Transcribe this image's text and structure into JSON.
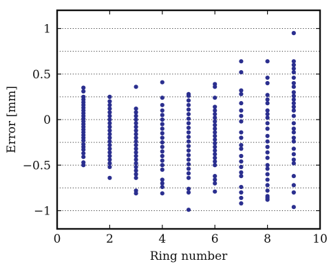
{
  "chart_data": {
    "type": "scatter",
    "xlabel": "Ring number",
    "ylabel": "Error [mm]",
    "xlim": [
      0,
      10
    ],
    "ylim": [
      -1.2,
      1.2
    ],
    "x_ticks": [
      0,
      2,
      4,
      6,
      8,
      10
    ],
    "x_tick_labels": [
      "0",
      "2",
      "4",
      "6",
      "8",
      "10"
    ],
    "y_ticks": [
      1,
      0.5,
      0,
      -0.5,
      -1
    ],
    "y_tick_labels": [
      "1",
      "0.5",
      "0",
      "−0.5",
      "−1"
    ],
    "grid": "horizontal dotted lines every 0.25",
    "grid_values": [
      1,
      0.75,
      0.5,
      0.25,
      0,
      -0.25,
      -0.5,
      -0.75,
      -1
    ],
    "legend": "none",
    "marker_color": "#2b2f8f",
    "series": [
      {
        "points": [
          {
            "x": 1,
            "y": 0.35
          },
          {
            "x": 1,
            "y": 0.31
          },
          {
            "x": 1,
            "y": 0.25
          },
          {
            "x": 1,
            "y": 0.22
          },
          {
            "x": 1,
            "y": 0.19
          },
          {
            "x": 1,
            "y": 0.16
          },
          {
            "x": 1,
            "y": 0.13
          },
          {
            "x": 1,
            "y": 0.1
          },
          {
            "x": 1,
            "y": 0.07
          },
          {
            "x": 1,
            "y": 0.04
          },
          {
            "x": 1,
            "y": 0.01
          },
          {
            "x": 1,
            "y": -0.02
          },
          {
            "x": 1,
            "y": -0.05
          },
          {
            "x": 1,
            "y": -0.08
          },
          {
            "x": 1,
            "y": -0.11
          },
          {
            "x": 1,
            "y": -0.14
          },
          {
            "x": 1,
            "y": -0.17
          },
          {
            "x": 1,
            "y": -0.2
          },
          {
            "x": 1,
            "y": -0.23
          },
          {
            "x": 1,
            "y": -0.27
          },
          {
            "x": 1,
            "y": -0.3
          },
          {
            "x": 1,
            "y": -0.33
          },
          {
            "x": 1,
            "y": -0.37
          },
          {
            "x": 1,
            "y": -0.41
          },
          {
            "x": 1,
            "y": -0.47
          },
          {
            "x": 1,
            "y": -0.5
          },
          {
            "x": 2,
            "y": 0.25
          },
          {
            "x": 2,
            "y": 0.2
          },
          {
            "x": 2,
            "y": 0.16
          },
          {
            "x": 2,
            "y": 0.12
          },
          {
            "x": 2,
            "y": 0.08
          },
          {
            "x": 2,
            "y": 0.04
          },
          {
            "x": 2,
            "y": 0.0
          },
          {
            "x": 2,
            "y": -0.04
          },
          {
            "x": 2,
            "y": -0.08
          },
          {
            "x": 2,
            "y": -0.12
          },
          {
            "x": 2,
            "y": -0.16
          },
          {
            "x": 2,
            "y": -0.2
          },
          {
            "x": 2,
            "y": -0.24
          },
          {
            "x": 2,
            "y": -0.28
          },
          {
            "x": 2,
            "y": -0.32
          },
          {
            "x": 2,
            "y": -0.36
          },
          {
            "x": 2,
            "y": -0.4
          },
          {
            "x": 2,
            "y": -0.44
          },
          {
            "x": 2,
            "y": -0.48
          },
          {
            "x": 2,
            "y": -0.52
          },
          {
            "x": 2,
            "y": -0.64
          },
          {
            "x": 3,
            "y": 0.36
          },
          {
            "x": 3,
            "y": 0.12
          },
          {
            "x": 3,
            "y": 0.08
          },
          {
            "x": 3,
            "y": 0.04
          },
          {
            "x": 3,
            "y": 0.0
          },
          {
            "x": 3,
            "y": -0.04
          },
          {
            "x": 3,
            "y": -0.08
          },
          {
            "x": 3,
            "y": -0.12
          },
          {
            "x": 3,
            "y": -0.16
          },
          {
            "x": 3,
            "y": -0.2
          },
          {
            "x": 3,
            "y": -0.24
          },
          {
            "x": 3,
            "y": -0.28
          },
          {
            "x": 3,
            "y": -0.32
          },
          {
            "x": 3,
            "y": -0.36
          },
          {
            "x": 3,
            "y": -0.4
          },
          {
            "x": 3,
            "y": -0.44
          },
          {
            "x": 3,
            "y": -0.48
          },
          {
            "x": 3,
            "y": -0.52
          },
          {
            "x": 3,
            "y": -0.56
          },
          {
            "x": 3,
            "y": -0.6
          },
          {
            "x": 3,
            "y": -0.64
          },
          {
            "x": 3,
            "y": -0.78
          },
          {
            "x": 3,
            "y": -0.81
          },
          {
            "x": 4,
            "y": 0.41
          },
          {
            "x": 4,
            "y": 0.24
          },
          {
            "x": 4,
            "y": 0.16
          },
          {
            "x": 4,
            "y": 0.1
          },
          {
            "x": 4,
            "y": 0.05
          },
          {
            "x": 4,
            "y": 0.0
          },
          {
            "x": 4,
            "y": -0.05
          },
          {
            "x": 4,
            "y": -0.1
          },
          {
            "x": 4,
            "y": -0.15
          },
          {
            "x": 4,
            "y": -0.2
          },
          {
            "x": 4,
            "y": -0.25
          },
          {
            "x": 4,
            "y": -0.3
          },
          {
            "x": 4,
            "y": -0.35
          },
          {
            "x": 4,
            "y": -0.4
          },
          {
            "x": 4,
            "y": -0.45
          },
          {
            "x": 4,
            "y": -0.5
          },
          {
            "x": 4,
            "y": -0.55
          },
          {
            "x": 4,
            "y": -0.66
          },
          {
            "x": 4,
            "y": -0.7
          },
          {
            "x": 4,
            "y": -0.74
          },
          {
            "x": 4,
            "y": -0.81
          },
          {
            "x": 5,
            "y": 0.28
          },
          {
            "x": 5,
            "y": 0.26
          },
          {
            "x": 5,
            "y": 0.21
          },
          {
            "x": 5,
            "y": 0.16
          },
          {
            "x": 5,
            "y": 0.11
          },
          {
            "x": 5,
            "y": 0.06
          },
          {
            "x": 5,
            "y": 0.01
          },
          {
            "x": 5,
            "y": -0.04
          },
          {
            "x": 5,
            "y": -0.09
          },
          {
            "x": 5,
            "y": -0.14
          },
          {
            "x": 5,
            "y": -0.19
          },
          {
            "x": 5,
            "y": -0.24
          },
          {
            "x": 5,
            "y": -0.29
          },
          {
            "x": 5,
            "y": -0.34
          },
          {
            "x": 5,
            "y": -0.39
          },
          {
            "x": 5,
            "y": -0.44
          },
          {
            "x": 5,
            "y": -0.49
          },
          {
            "x": 5,
            "y": -0.54
          },
          {
            "x": 5,
            "y": -0.59
          },
          {
            "x": 5,
            "y": -0.64
          },
          {
            "x": 5,
            "y": -0.76
          },
          {
            "x": 5,
            "y": -0.8
          },
          {
            "x": 5,
            "y": -0.99
          },
          {
            "x": 6,
            "y": 0.39
          },
          {
            "x": 6,
            "y": 0.36
          },
          {
            "x": 6,
            "y": 0.24
          },
          {
            "x": 6,
            "y": 0.14
          },
          {
            "x": 6,
            "y": 0.1
          },
          {
            "x": 6,
            "y": 0.06
          },
          {
            "x": 6,
            "y": 0.02
          },
          {
            "x": 6,
            "y": -0.02
          },
          {
            "x": 6,
            "y": -0.06
          },
          {
            "x": 6,
            "y": -0.1
          },
          {
            "x": 6,
            "y": -0.14
          },
          {
            "x": 6,
            "y": -0.18
          },
          {
            "x": 6,
            "y": -0.22
          },
          {
            "x": 6,
            "y": -0.26
          },
          {
            "x": 6,
            "y": -0.3
          },
          {
            "x": 6,
            "y": -0.34
          },
          {
            "x": 6,
            "y": -0.38
          },
          {
            "x": 6,
            "y": -0.42
          },
          {
            "x": 6,
            "y": -0.46
          },
          {
            "x": 6,
            "y": -0.5
          },
          {
            "x": 6,
            "y": -0.62
          },
          {
            "x": 6,
            "y": -0.66
          },
          {
            "x": 6,
            "y": -0.7
          },
          {
            "x": 6,
            "y": -0.79
          },
          {
            "x": 7,
            "y": 0.64
          },
          {
            "x": 7,
            "y": 0.52
          },
          {
            "x": 7,
            "y": 0.32
          },
          {
            "x": 7,
            "y": 0.28
          },
          {
            "x": 7,
            "y": 0.18
          },
          {
            "x": 7,
            "y": 0.1
          },
          {
            "x": 7,
            "y": 0.04
          },
          {
            "x": 7,
            "y": -0.02
          },
          {
            "x": 7,
            "y": -0.14
          },
          {
            "x": 7,
            "y": -0.2
          },
          {
            "x": 7,
            "y": -0.28
          },
          {
            "x": 7,
            "y": -0.32
          },
          {
            "x": 7,
            "y": -0.4
          },
          {
            "x": 7,
            "y": -0.46
          },
          {
            "x": 7,
            "y": -0.52
          },
          {
            "x": 7,
            "y": -0.58
          },
          {
            "x": 7,
            "y": -0.62
          },
          {
            "x": 7,
            "y": -0.74
          },
          {
            "x": 7,
            "y": -0.8
          },
          {
            "x": 7,
            "y": -0.86
          },
          {
            "x": 7,
            "y": -0.92
          },
          {
            "x": 8,
            "y": 0.64
          },
          {
            "x": 8,
            "y": 0.46
          },
          {
            "x": 8,
            "y": 0.4
          },
          {
            "x": 8,
            "y": 0.27
          },
          {
            "x": 8,
            "y": 0.22
          },
          {
            "x": 8,
            "y": 0.18
          },
          {
            "x": 8,
            "y": 0.1
          },
          {
            "x": 8,
            "y": 0.06
          },
          {
            "x": 8,
            "y": 0.02
          },
          {
            "x": 8,
            "y": -0.04
          },
          {
            "x": 8,
            "y": -0.1
          },
          {
            "x": 8,
            "y": -0.18
          },
          {
            "x": 8,
            "y": -0.24
          },
          {
            "x": 8,
            "y": -0.3
          },
          {
            "x": 8,
            "y": -0.36
          },
          {
            "x": 8,
            "y": -0.42
          },
          {
            "x": 8,
            "y": -0.5
          },
          {
            "x": 8,
            "y": -0.54
          },
          {
            "x": 8,
            "y": -0.6
          },
          {
            "x": 8,
            "y": -0.66
          },
          {
            "x": 8,
            "y": -0.72
          },
          {
            "x": 8,
            "y": -0.78
          },
          {
            "x": 8,
            "y": -0.84
          },
          {
            "x": 8,
            "y": -0.86
          },
          {
            "x": 8,
            "y": -0.88
          },
          {
            "x": 9,
            "y": 0.95
          },
          {
            "x": 9,
            "y": 0.64
          },
          {
            "x": 9,
            "y": 0.6
          },
          {
            "x": 9,
            "y": 0.56
          },
          {
            "x": 9,
            "y": 0.52
          },
          {
            "x": 9,
            "y": 0.46
          },
          {
            "x": 9,
            "y": 0.4
          },
          {
            "x": 9,
            "y": 0.36
          },
          {
            "x": 9,
            "y": 0.3
          },
          {
            "x": 9,
            "y": 0.26
          },
          {
            "x": 9,
            "y": 0.22
          },
          {
            "x": 9,
            "y": 0.18
          },
          {
            "x": 9,
            "y": 0.14
          },
          {
            "x": 9,
            "y": 0.1
          },
          {
            "x": 9,
            "y": 0.04
          },
          {
            "x": 9,
            "y": -0.04
          },
          {
            "x": 9,
            "y": -0.1
          },
          {
            "x": 9,
            "y": -0.14
          },
          {
            "x": 9,
            "y": -0.2
          },
          {
            "x": 9,
            "y": -0.24
          },
          {
            "x": 9,
            "y": -0.32
          },
          {
            "x": 9,
            "y": -0.38
          },
          {
            "x": 9,
            "y": -0.44
          },
          {
            "x": 9,
            "y": -0.48
          },
          {
            "x": 9,
            "y": -0.62
          },
          {
            "x": 9,
            "y": -0.72
          },
          {
            "x": 9,
            "y": -0.8
          },
          {
            "x": 9,
            "y": -0.96
          }
        ]
      }
    ]
  }
}
